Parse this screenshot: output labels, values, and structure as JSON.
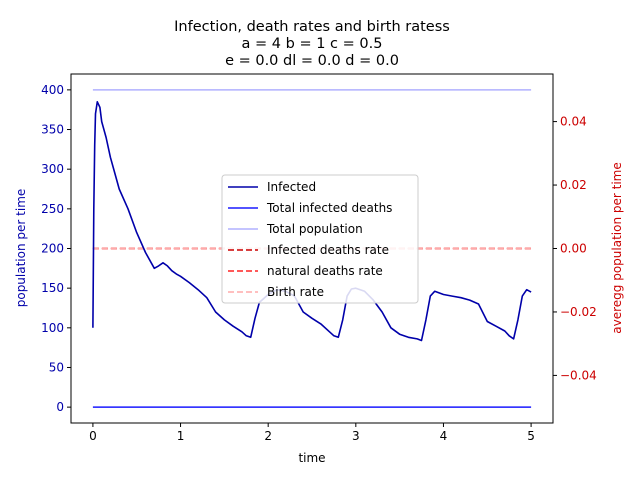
{
  "chart_data": {
    "type": "line",
    "title_lines": [
      "Infection, death rates and birth ratess",
      "a = 4   b = 1   c = 0.5",
      "e = 0.0   dl = 0.0   d = 0.0"
    ],
    "xlabel": "time",
    "ylabel_left": "population per time",
    "ylabel_right": "averegg population per time",
    "xlim": [
      -0.25,
      5.25
    ],
    "ylim_left": [
      -20,
      420
    ],
    "ylim_right": [
      -0.055,
      0.055
    ],
    "xticks": [
      0,
      1,
      2,
      3,
      4,
      5
    ],
    "yticks_left": [
      0,
      50,
      100,
      150,
      200,
      250,
      300,
      350,
      400
    ],
    "yticks_right": [
      -0.04,
      -0.02,
      0.0,
      0.02,
      0.04
    ],
    "yticks_right_labels": [
      "−0.04",
      "−0.02",
      "0.00",
      "0.02",
      "0.04"
    ],
    "left_axis_color": "#0000aa",
    "right_axis_color": "#cc0000",
    "grid": false,
    "legend_position": "center",
    "series": [
      {
        "name": "Infected",
        "axis": "left",
        "color": "#0000aa",
        "style": "solid",
        "x": [
          0,
          0.01,
          0.02,
          0.03,
          0.05,
          0.08,
          0.1,
          0.15,
          0.2,
          0.25,
          0.3,
          0.4,
          0.5,
          0.6,
          0.7,
          0.75,
          0.8,
          0.85,
          0.9,
          0.95,
          1.0,
          1.1,
          1.2,
          1.3,
          1.4,
          1.5,
          1.6,
          1.7,
          1.75,
          1.8,
          1.85,
          1.9,
          2.0,
          2.1,
          2.2,
          2.3,
          2.4,
          2.5,
          2.6,
          2.7,
          2.75,
          2.8,
          2.85,
          2.9,
          2.95,
          3.0,
          3.1,
          3.2,
          3.3,
          3.4,
          3.5,
          3.6,
          3.7,
          3.75,
          3.8,
          3.85,
          3.9,
          3.95,
          4.0,
          4.1,
          4.2,
          4.3,
          4.4,
          4.5,
          4.6,
          4.7,
          4.75,
          4.8,
          4.85,
          4.9,
          4.95,
          5.0
        ],
        "values": [
          100,
          250,
          330,
          370,
          385,
          378,
          360,
          340,
          315,
          295,
          275,
          250,
          220,
          195,
          175,
          178,
          182,
          178,
          172,
          168,
          165,
          157,
          148,
          138,
          120,
          110,
          102,
          95,
          90,
          88,
          112,
          132,
          142,
          148,
          146,
          140,
          120,
          112,
          105,
          95,
          90,
          88,
          110,
          140,
          149,
          150,
          146,
          135,
          120,
          100,
          92,
          88,
          86,
          84,
          110,
          140,
          146,
          144,
          142,
          140,
          138,
          135,
          130,
          108,
          102,
          96,
          90,
          86,
          110,
          140,
          148,
          145
        ]
      },
      {
        "name": "Total infected deaths",
        "axis": "left",
        "color": "#1a1aff",
        "style": "solid",
        "x": [
          0,
          5
        ],
        "values": [
          0,
          0
        ]
      },
      {
        "name": "Total population",
        "axis": "left",
        "color": "#b0b0ff",
        "style": "solid",
        "x": [
          0,
          5
        ],
        "values": [
          400,
          400
        ]
      },
      {
        "name": "Infected deaths rate",
        "axis": "right",
        "color": "#cc0000",
        "style": "dashed",
        "x": [
          0,
          5
        ],
        "values": [
          0,
          0
        ]
      },
      {
        "name": "natural deaths rate",
        "axis": "right",
        "color": "#ff2222",
        "style": "dashed",
        "x": [
          0,
          5
        ],
        "values": [
          0,
          0
        ]
      },
      {
        "name": "Birth rate",
        "axis": "right",
        "color": "#ffaaaa",
        "style": "dashed",
        "x": [
          0,
          5
        ],
        "values": [
          0,
          0
        ]
      }
    ]
  }
}
